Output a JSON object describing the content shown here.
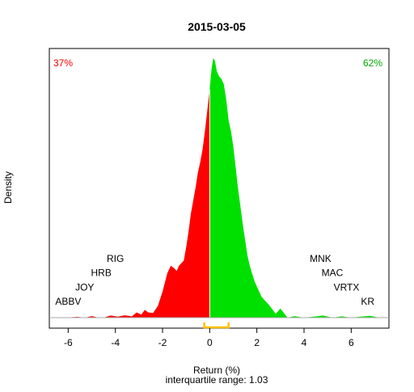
{
  "chart_data": {
    "type": "area",
    "title": "2015-03-05",
    "xlabel": "Return (%)",
    "ylabel": "Density",
    "subtitle": "interquartile range: 1.03",
    "xlim": [
      -6.8,
      7.6
    ],
    "ylim": [
      0,
      1.0
    ],
    "x_ticks": [
      -6,
      -4,
      -2,
      0,
      2,
      4,
      6
    ],
    "split_at": 0,
    "negative_share_label": "37%",
    "positive_share_label": "62%",
    "colors": {
      "negative": "#ff0000",
      "positive": "#00e000",
      "iqr": "#ffc000",
      "axis": "#000000",
      "baseline": "#aaaaaa"
    },
    "interquartile_range": 1.03,
    "iqr_interval": [
      -0.23,
      0.8
    ],
    "density": {
      "x": [
        -6.2,
        -5.6,
        -5.3,
        -5.0,
        -4.7,
        -4.5,
        -4.2,
        -3.9,
        -3.6,
        -3.3,
        -3.1,
        -2.9,
        -2.75,
        -2.6,
        -2.4,
        -2.2,
        -2.0,
        -1.8,
        -1.65,
        -1.5,
        -1.4,
        -1.3,
        -1.2,
        -1.1,
        -1.0,
        -0.9,
        -0.8,
        -0.6,
        -0.5,
        -0.4,
        -0.3,
        -0.2,
        -0.1,
        0.0,
        0.08,
        0.15,
        0.22,
        0.3,
        0.4,
        0.5,
        0.6,
        0.7,
        0.8,
        0.9,
        1.0,
        1.1,
        1.2,
        1.3,
        1.4,
        1.5,
        1.6,
        1.7,
        1.8,
        1.9,
        2.0,
        2.2,
        2.5,
        2.8,
        3.0,
        3.3,
        3.6,
        4.0,
        4.4,
        4.8,
        5.2,
        5.6,
        6.0,
        6.4,
        6.8,
        7.2
      ],
      "y": [
        0.0,
        0.003,
        0.0,
        0.006,
        0.0,
        0.0,
        0.008,
        0.004,
        0.009,
        0.005,
        0.02,
        0.012,
        0.03,
        0.02,
        0.018,
        0.045,
        0.1,
        0.17,
        0.2,
        0.19,
        0.18,
        0.2,
        0.21,
        0.22,
        0.27,
        0.33,
        0.4,
        0.5,
        0.56,
        0.6,
        0.65,
        0.72,
        0.8,
        0.88,
        0.96,
        1.0,
        0.99,
        0.95,
        0.93,
        0.92,
        0.9,
        0.84,
        0.76,
        0.72,
        0.66,
        0.58,
        0.5,
        0.43,
        0.36,
        0.3,
        0.24,
        0.2,
        0.17,
        0.14,
        0.12,
        0.08,
        0.05,
        0.015,
        0.035,
        0.0,
        0.006,
        0.0,
        0.004,
        0.008,
        0.0,
        0.005,
        0.0,
        0.004,
        0.007,
        0.0
      ]
    },
    "annotations": [
      {
        "label": "RIG",
        "x": -4.0,
        "y": 0.215
      },
      {
        "label": "HRB",
        "x": -4.6,
        "y": 0.16
      },
      {
        "label": "JOY",
        "x": -5.3,
        "y": 0.105
      },
      {
        "label": "ABBV",
        "x": -6.0,
        "y": 0.05
      },
      {
        "label": "MNK",
        "x": 4.7,
        "y": 0.215
      },
      {
        "label": "MAC",
        "x": 5.2,
        "y": 0.16
      },
      {
        "label": "VRTX",
        "x": 5.8,
        "y": 0.105
      },
      {
        "label": "KR",
        "x": 6.7,
        "y": 0.05
      }
    ]
  }
}
